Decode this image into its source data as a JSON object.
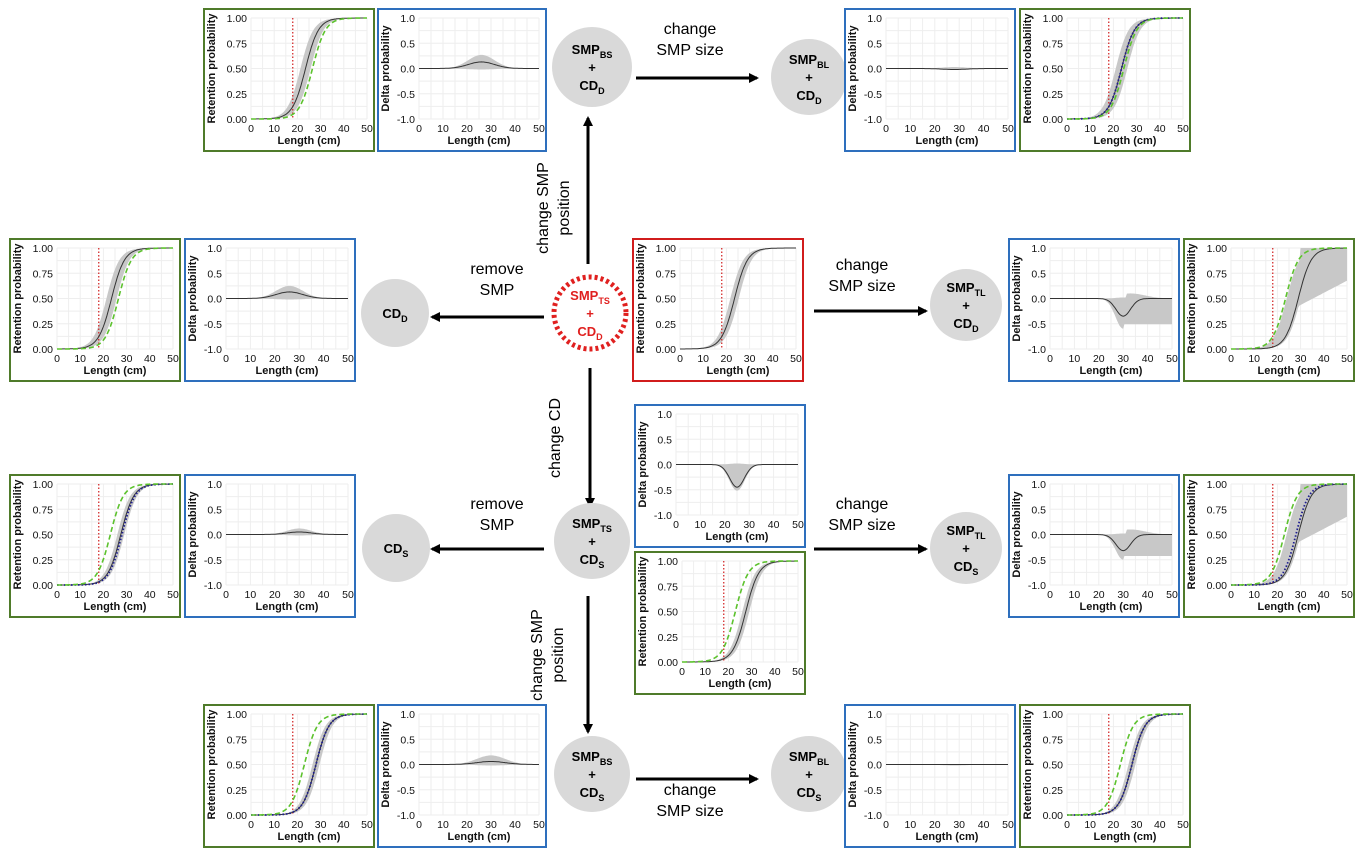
{
  "common": {
    "xlabel": "Length (cm)",
    "ylabel_retention": "Retention probability",
    "ylabel_delta": "Delta probability",
    "x_ticks": [
      "0",
      "10",
      "20",
      "30",
      "40",
      "50"
    ],
    "retention_y_ticks": [
      "0.00",
      "0.25",
      "0.50",
      "0.75",
      "1.00"
    ],
    "delta_y_ticks": [
      "-1.0",
      "-0.5",
      "0.0",
      "0.5",
      "1.0"
    ]
  },
  "colors": {
    "retention_border": "#4f7b2a",
    "delta_border": "#2e6fbd",
    "baseline_border": "#d11c1c",
    "baseline_node_text": "#e0201f",
    "reference_curve": "#5cc22d",
    "comparison_curve": "#1f1f8f",
    "mls_line": "#d11c1c",
    "band": "#c8c8c8",
    "node_fill": "#d9d9d9"
  },
  "nodes": [
    {
      "id": "center",
      "lines": [
        {
          "main": "SMP",
          "sub": "TS"
        },
        {
          "main": "+",
          "sub": ""
        },
        {
          "main": "CD",
          "sub": "D"
        }
      ]
    },
    {
      "id": "top",
      "lines": [
        {
          "main": "SMP",
          "sub": "BS"
        },
        {
          "main": "+",
          "sub": ""
        },
        {
          "main": "CD",
          "sub": "D"
        }
      ]
    },
    {
      "id": "topright",
      "lines": [
        {
          "main": "SMP",
          "sub": "BL"
        },
        {
          "main": "+",
          "sub": ""
        },
        {
          "main": "CD",
          "sub": "D"
        }
      ]
    },
    {
      "id": "left",
      "lines": [
        {
          "main": "CD",
          "sub": "D"
        }
      ]
    },
    {
      "id": "right",
      "lines": [
        {
          "main": "SMP",
          "sub": "TL"
        },
        {
          "main": "+",
          "sub": ""
        },
        {
          "main": "CD",
          "sub": "D"
        }
      ]
    },
    {
      "id": "mid",
      "lines": [
        {
          "main": "SMP",
          "sub": "TS"
        },
        {
          "main": "+",
          "sub": ""
        },
        {
          "main": "CD",
          "sub": "S"
        }
      ]
    },
    {
      "id": "midleft",
      "lines": [
        {
          "main": "CD",
          "sub": "S"
        }
      ]
    },
    {
      "id": "midright",
      "lines": [
        {
          "main": "SMP",
          "sub": "TL"
        },
        {
          "main": "+",
          "sub": ""
        },
        {
          "main": "CD",
          "sub": "S"
        }
      ]
    },
    {
      "id": "bottom",
      "lines": [
        {
          "main": "SMP",
          "sub": "BS"
        },
        {
          "main": "+",
          "sub": ""
        },
        {
          "main": "CD",
          "sub": "S"
        }
      ]
    },
    {
      "id": "bottomright",
      "lines": [
        {
          "main": "SMP",
          "sub": "BL"
        },
        {
          "main": "+",
          "sub": ""
        },
        {
          "main": "CD",
          "sub": "S"
        }
      ]
    }
  ],
  "edges": [
    {
      "id": "center-top",
      "label": [
        "change SMP",
        "position"
      ]
    },
    {
      "id": "top-topright",
      "label": [
        "change",
        "SMP size"
      ]
    },
    {
      "id": "center-left",
      "label": [
        "remove",
        "SMP"
      ]
    },
    {
      "id": "center-right",
      "label": [
        "change",
        "SMP size"
      ]
    },
    {
      "id": "center-mid",
      "label": [
        "change CD"
      ]
    },
    {
      "id": "mid-midleft",
      "label": [
        "remove",
        "SMP"
      ]
    },
    {
      "id": "mid-midright",
      "label": [
        "change",
        "SMP size"
      ]
    },
    {
      "id": "mid-bottom",
      "label": [
        "change SMP",
        "position"
      ]
    },
    {
      "id": "bottom-bottomright",
      "label": [
        "change",
        "SMP size"
      ]
    }
  ],
  "chart_data": [
    {
      "id": "p-top-ret",
      "type": "line",
      "ylim": [
        0,
        1
      ],
      "xlim": [
        0,
        50
      ],
      "mls": 18,
      "series": [
        {
          "role": "reference",
          "values": "sigmoid L50=26.5 SR=5.5"
        },
        {
          "role": "scenario",
          "values": "sigmoid L50=23.5 SR=4.5, band ±"
        }
      ]
    },
    {
      "id": "p-top-delta",
      "type": "line",
      "ylim": [
        -1,
        1
      ],
      "xlim": [
        0,
        50
      ],
      "series": [
        {
          "role": "delta",
          "peak_x": 26,
          "peak_y": 0.13,
          "band_peak": 0.27
        }
      ]
    },
    {
      "id": "p-tr-delta",
      "type": "line",
      "ylim": [
        -1,
        1
      ],
      "xlim": [
        0,
        50
      ],
      "series": [
        {
          "role": "delta",
          "peak_x": 28,
          "peak_y": -0.02,
          "band_peak": 0.03
        }
      ]
    },
    {
      "id": "p-tr-ret",
      "type": "line",
      "ylim": [
        0,
        1
      ],
      "xlim": [
        0,
        50
      ],
      "mls": 18,
      "series": [
        {
          "role": "reference",
          "L50": 24.5
        },
        {
          "role": "scenario",
          "L50": 23.5
        },
        {
          "role": "comparison",
          "L50": 23.5
        }
      ]
    },
    {
      "id": "p-left-ret",
      "type": "line",
      "ylim": [
        0,
        1
      ],
      "xlim": [
        0,
        50
      ],
      "mls": 18,
      "series": [
        {
          "role": "reference",
          "L50": 26.5
        },
        {
          "role": "scenario",
          "L50": 23.5
        }
      ]
    },
    {
      "id": "p-left-delta",
      "type": "line",
      "ylim": [
        -1,
        1
      ],
      "xlim": [
        0,
        50
      ],
      "series": [
        {
          "role": "delta",
          "peak_x": 26,
          "peak_y": 0.13,
          "band_peak": 0.25
        }
      ]
    },
    {
      "id": "p-center-ret",
      "type": "line",
      "ylim": [
        0,
        1
      ],
      "xlim": [
        0,
        50
      ],
      "mls": 18,
      "series": [
        {
          "role": "scenario",
          "L50": 23.5
        }
      ]
    },
    {
      "id": "p-right-delta",
      "type": "line",
      "ylim": [
        -1,
        1
      ],
      "xlim": [
        0,
        50
      ],
      "series": [
        {
          "role": "delta",
          "peak_x": 30,
          "peak_y": -0.35,
          "band_low": -0.6
        }
      ]
    },
    {
      "id": "p-right-ret",
      "type": "line",
      "ylim": [
        0,
        1
      ],
      "xlim": [
        0,
        50
      ],
      "mls": 18,
      "series": [
        {
          "role": "reference",
          "L50": 23.5
        },
        {
          "role": "scenario",
          "L50": 29
        }
      ]
    },
    {
      "id": "p-mid-delta",
      "type": "line",
      "ylim": [
        -1,
        1
      ],
      "xlim": [
        0,
        50
      ],
      "series": [
        {
          "role": "delta",
          "peak_x": 25,
          "peak_y": -0.45,
          "band_low": -0.52
        }
      ]
    },
    {
      "id": "p-mid-ret",
      "type": "line",
      "ylim": [
        0,
        1
      ],
      "xlim": [
        0,
        50
      ],
      "mls": 18,
      "series": [
        {
          "role": "reference",
          "L50": 23
        },
        {
          "role": "scenario",
          "L50": 27.5
        }
      ]
    },
    {
      "id": "p-ml-ret",
      "type": "line",
      "ylim": [
        0,
        1
      ],
      "xlim": [
        0,
        50
      ],
      "mls": 18,
      "series": [
        {
          "role": "reference",
          "L50": 23
        },
        {
          "role": "scenario",
          "L50": 27.5
        },
        {
          "role": "comparison",
          "L50": 28
        }
      ]
    },
    {
      "id": "p-ml-delta",
      "type": "line",
      "ylim": [
        -1,
        1
      ],
      "xlim": [
        0,
        50
      ],
      "series": [
        {
          "role": "delta",
          "peak_x": 30,
          "peak_y": 0.05,
          "band_peak": 0.12
        }
      ]
    },
    {
      "id": "p-mr-delta",
      "type": "line",
      "ylim": [
        -1,
        1
      ],
      "xlim": [
        0,
        50
      ],
      "series": [
        {
          "role": "delta",
          "peak_x": 30,
          "peak_y": -0.32,
          "band_low": -0.5
        }
      ]
    },
    {
      "id": "p-mr-ret",
      "type": "line",
      "ylim": [
        0,
        1
      ],
      "xlim": [
        0,
        50
      ],
      "mls": 18,
      "series": [
        {
          "role": "reference",
          "L50": 23
        },
        {
          "role": "scenario",
          "L50": 29
        },
        {
          "role": "comparison",
          "L50": 28
        }
      ]
    },
    {
      "id": "p-bottom-ret",
      "type": "line",
      "ylim": [
        0,
        1
      ],
      "xlim": [
        0,
        50
      ],
      "mls": 18,
      "series": [
        {
          "role": "reference",
          "L50": 23
        },
        {
          "role": "scenario",
          "L50": 28
        },
        {
          "role": "comparison",
          "L50": 28
        }
      ]
    },
    {
      "id": "p-bottom-delta",
      "type": "line",
      "ylim": [
        -1,
        1
      ],
      "xlim": [
        0,
        50
      ],
      "series": [
        {
          "role": "delta",
          "peak_x": 30,
          "peak_y": 0.06,
          "band_peak": 0.18
        }
      ]
    },
    {
      "id": "p-br-delta",
      "type": "line",
      "ylim": [
        -1,
        1
      ],
      "xlim": [
        0,
        50
      ],
      "series": [
        {
          "role": "delta",
          "peak_x": 28,
          "peak_y": 0.0,
          "band_peak": 0.01
        }
      ]
    },
    {
      "id": "p-br-ret",
      "type": "line",
      "ylim": [
        0,
        1
      ],
      "xlim": [
        0,
        50
      ],
      "mls": 18,
      "series": [
        {
          "role": "reference",
          "L50": 23
        },
        {
          "role": "scenario",
          "L50": 28
        },
        {
          "role": "comparison",
          "L50": 28
        }
      ]
    }
  ]
}
